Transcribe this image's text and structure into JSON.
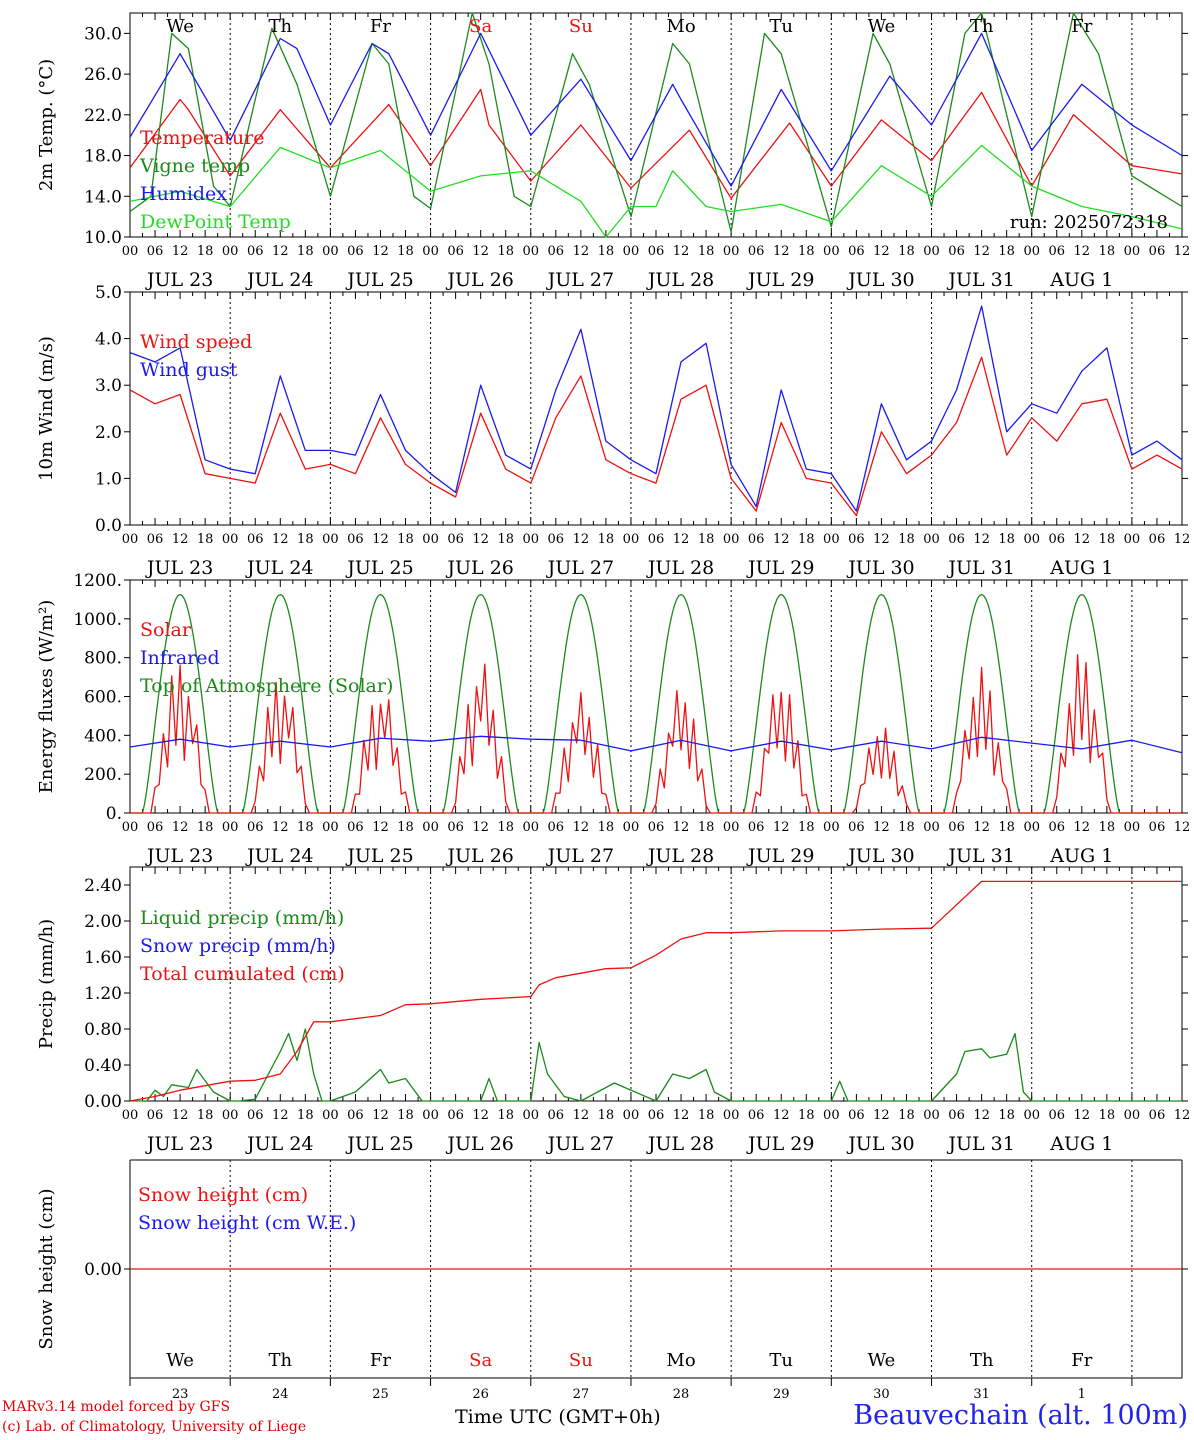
{
  "colors": {
    "temperature": "#ee1111",
    "vigne": "#1a8a1a",
    "humidex": "#1a1aee",
    "dewpoint": "#22dd22",
    "axis": "#000000",
    "weekend": "#ee1111"
  },
  "footer": {
    "model": "MARv3.14 model forced by GFS",
    "lab": "(c) Lab. of Climatology, University of Liege",
    "axis_title": "Time UTC (GMT+0h)",
    "station": "Beauvechain (alt. 100m)"
  },
  "chart_data": [
    {
      "type": "line",
      "id": "temperature",
      "ylabel": "2m Temp. (°C)",
      "ylim": [
        10,
        32
      ],
      "yticks": [
        "10.0",
        "14.0",
        "18.0",
        "22.0",
        "26.0",
        "30.0"
      ],
      "ytick_values": [
        10,
        14,
        18,
        22,
        26,
        30
      ],
      "annotation": "run: 2025072318",
      "days": [
        "We",
        "Th",
        "Fr",
        "Sa",
        "Su",
        "Mo",
        "Tu",
        "We",
        "Th",
        "Fr"
      ],
      "date_labels": [
        "JUL 23",
        "JUL 24",
        "JUL 25",
        "JUL 26",
        "JUL 27",
        "JUL 28",
        "JUL 29",
        "JUL 30",
        "JUL 31",
        "AUG  1"
      ],
      "series": [
        {
          "name": "Temperature",
          "color": "#ee1111",
          "x_hours": [
            0,
            12,
            14,
            24,
            36,
            48,
            62,
            72,
            84,
            86,
            96,
            108,
            120,
            134,
            144,
            158,
            168,
            180,
            192,
            204,
            216,
            226,
            240,
            252
          ],
          "values": [
            16.8,
            23.5,
            22.5,
            16.0,
            22.5,
            16.8,
            23.0,
            17.0,
            24.5,
            21.0,
            15.5,
            21.0,
            14.8,
            20.5,
            13.8,
            21.2,
            15.0,
            21.5,
            17.5,
            24.2,
            15.0,
            22.0,
            17.0,
            16.2
          ]
        },
        {
          "name": "Vigne temp",
          "color": "#1a8a1a",
          "x_hours": [
            0,
            5,
            10,
            14,
            20,
            24,
            34,
            40,
            48,
            58,
            62,
            68,
            72,
            82,
            86,
            92,
            96,
            106,
            110,
            120,
            130,
            134,
            144,
            152,
            156,
            168,
            178,
            182,
            192,
            200,
            204,
            216,
            226,
            232,
            240,
            252
          ],
          "values": [
            12.5,
            14.0,
            30.0,
            28.5,
            15.0,
            13.0,
            30.5,
            25.0,
            14.0,
            29.0,
            27.0,
            14.0,
            12.8,
            32.0,
            27.0,
            14.0,
            13.0,
            28.0,
            25.0,
            12.0,
            29.0,
            27.0,
            10.5,
            30.0,
            28.0,
            11.0,
            30.0,
            27.0,
            13.0,
            30.0,
            32.0,
            12.0,
            32.0,
            28.0,
            16.0,
            13.0
          ]
        },
        {
          "name": "Humidex",
          "color": "#1a1aee",
          "x_hours": [
            0,
            12,
            24,
            36,
            40,
            48,
            58,
            62,
            72,
            84,
            96,
            108,
            120,
            130,
            132,
            144,
            156,
            168,
            182,
            192,
            204,
            216,
            228,
            240,
            252
          ],
          "values": [
            19.8,
            28.0,
            19.5,
            29.5,
            28.5,
            21.0,
            29.0,
            28.0,
            20.0,
            30.0,
            20.0,
            25.5,
            17.5,
            25.0,
            23.5,
            15.0,
            24.5,
            16.5,
            25.8,
            21.0,
            30.0,
            18.5,
            25.0,
            21.0,
            18.0
          ]
        },
        {
          "name": "DewPoint Temp",
          "color": "#22dd22",
          "x_hours": [
            0,
            12,
            24,
            36,
            48,
            60,
            72,
            84,
            96,
            108,
            114,
            120,
            126,
            130,
            138,
            144,
            156,
            168,
            180,
            192,
            204,
            216,
            228,
            240,
            252
          ],
          "values": [
            13.5,
            14.5,
            13.0,
            18.8,
            16.8,
            18.5,
            14.5,
            16.0,
            16.5,
            13.5,
            10.0,
            13.0,
            13.0,
            16.5,
            13.0,
            12.5,
            13.2,
            11.5,
            17.0,
            14.0,
            19.0,
            15.0,
            13.0,
            12.0,
            10.8
          ]
        }
      ]
    },
    {
      "type": "line",
      "id": "wind",
      "ylabel": "10m Wind (m/s)",
      "ylim": [
        0,
        5
      ],
      "yticks": [
        "0.0",
        "1.0",
        "2.0",
        "3.0",
        "4.0",
        "5.0"
      ],
      "ytick_values": [
        0,
        1,
        2,
        3,
        4,
        5
      ],
      "date_labels": [
        "JUL 23",
        "JUL 24",
        "JUL 25",
        "JUL 26",
        "JUL 27",
        "JUL 28",
        "JUL 29",
        "JUL 30",
        "JUL 31",
        "AUG  1"
      ],
      "series": [
        {
          "name": "Wind speed",
          "color": "#ee1111",
          "x_hours": [
            0,
            6,
            12,
            18,
            24,
            30,
            36,
            42,
            48,
            54,
            60,
            66,
            72,
            78,
            84,
            90,
            96,
            102,
            108,
            114,
            120,
            126,
            132,
            138,
            144,
            150,
            156,
            162,
            168,
            174,
            180,
            186,
            192,
            198,
            204,
            210,
            216,
            222,
            228,
            234,
            240,
            246,
            252
          ],
          "values": [
            2.9,
            2.6,
            2.8,
            1.1,
            1.0,
            0.9,
            2.4,
            1.2,
            1.3,
            1.1,
            2.3,
            1.3,
            0.9,
            0.6,
            2.4,
            1.2,
            0.9,
            2.3,
            3.2,
            1.4,
            1.1,
            0.9,
            2.7,
            3.0,
            1.0,
            0.3,
            2.2,
            1.0,
            0.9,
            0.2,
            2.0,
            1.1,
            1.5,
            2.2,
            3.6,
            1.5,
            2.3,
            1.8,
            2.6,
            2.7,
            1.2,
            1.5,
            1.2
          ]
        },
        {
          "name": "Wind gust",
          "color": "#1a1aee",
          "x_hours": [
            0,
            6,
            12,
            18,
            24,
            30,
            36,
            42,
            48,
            54,
            60,
            66,
            72,
            78,
            84,
            90,
            96,
            102,
            108,
            114,
            120,
            126,
            132,
            138,
            144,
            150,
            156,
            162,
            168,
            174,
            180,
            186,
            192,
            198,
            204,
            210,
            216,
            222,
            228,
            234,
            240,
            246,
            252
          ],
          "values": [
            3.7,
            3.5,
            3.8,
            1.4,
            1.2,
            1.1,
            3.2,
            1.6,
            1.6,
            1.5,
            2.8,
            1.6,
            1.1,
            0.7,
            3.0,
            1.5,
            1.2,
            2.9,
            4.2,
            1.8,
            1.4,
            1.1,
            3.5,
            3.9,
            1.3,
            0.4,
            2.9,
            1.2,
            1.1,
            0.3,
            2.6,
            1.4,
            1.8,
            2.9,
            4.7,
            2.0,
            2.6,
            2.4,
            3.3,
            3.8,
            1.5,
            1.8,
            1.4
          ]
        }
      ]
    },
    {
      "type": "line",
      "id": "energy",
      "ylabel": "Energy fluxes (W/m²)",
      "ylim": [
        0,
        1200
      ],
      "yticks": [
        "0.",
        "200.",
        "400.",
        "600.",
        "800.",
        "1000.",
        "1200."
      ],
      "ytick_values": [
        0,
        200,
        400,
        600,
        800,
        1000,
        1200
      ],
      "date_labels": [
        "JUL 23",
        "JUL 24",
        "JUL 25",
        "JUL 26",
        "JUL 27",
        "JUL 28",
        "JUL 29",
        "JUL 30",
        "JUL 31",
        "AUG  1"
      ],
      "series": [
        {
          "name": "Solar",
          "color": "#ee1111",
          "solar_peaks": [
            800,
            730,
            660,
            790,
            620,
            650,
            690,
            450,
            750,
            840
          ]
        },
        {
          "name": "Infrared",
          "color": "#1a1aee",
          "x_hours": [
            0,
            12,
            24,
            36,
            48,
            60,
            72,
            84,
            96,
            108,
            120,
            132,
            144,
            156,
            168,
            180,
            192,
            204,
            216,
            228,
            240,
            252
          ],
          "values": [
            340,
            380,
            340,
            370,
            340,
            385,
            370,
            395,
            380,
            375,
            320,
            375,
            320,
            370,
            325,
            370,
            330,
            390,
            360,
            330,
            375,
            310
          ]
        },
        {
          "name": "Top of Atmosphere (Solar)",
          "color": "#1a8a1a",
          "peak": 1125
        }
      ]
    },
    {
      "type": "line",
      "id": "precip",
      "ylabel": "Precip (mm/h)",
      "ylim": [
        0,
        2.6
      ],
      "yticks": [
        "0.00",
        "0.40",
        "0.80",
        "1.20",
        "1.60",
        "2.00",
        "2.40"
      ],
      "ytick_values": [
        0,
        0.4,
        0.8,
        1.2,
        1.6,
        2.0,
        2.4
      ],
      "date_labels": [
        "JUL 23",
        "JUL 24",
        "JUL 25",
        "JUL 26",
        "JUL 27",
        "JUL 28",
        "JUL 29",
        "JUL 30",
        "JUL 31",
        "AUG  1"
      ],
      "series": [
        {
          "name": "Liquid precip (mm/h)",
          "color": "#1a8a1a",
          "x_hours": [
            0,
            4,
            6,
            8,
            10,
            14,
            16,
            20,
            24,
            26,
            30,
            36,
            38,
            40,
            42,
            44,
            46,
            48,
            54,
            60,
            62,
            66,
            70,
            84,
            86,
            88,
            96,
            98,
            100,
            104,
            108,
            116,
            126,
            130,
            134,
            138,
            140,
            144,
            168,
            170,
            172,
            192,
            198,
            200,
            204,
            206,
            210,
            212,
            214,
            216,
            252
          ],
          "values": [
            0,
            0,
            0.12,
            0.05,
            0.18,
            0.15,
            0.35,
            0.1,
            0,
            0,
            0.02,
            0.55,
            0.75,
            0.45,
            0.8,
            0.3,
            0,
            0,
            0.1,
            0.35,
            0.2,
            0.25,
            0,
            0,
            0.25,
            0,
            0,
            0.65,
            0.3,
            0.05,
            0,
            0.2,
            0,
            0.3,
            0.25,
            0.35,
            0.1,
            0,
            0,
            0.22,
            0,
            0,
            0.3,
            0.55,
            0.58,
            0.48,
            0.52,
            0.75,
            0.1,
            0,
            0
          ]
        },
        {
          "name": "Snow precip (mm/h)",
          "color": "#1a1aee",
          "values": []
        },
        {
          "name": "Total cumulated (cm)",
          "color": "#ee1111",
          "x_hours": [
            0,
            6,
            12,
            24,
            30,
            36,
            40,
            44,
            48,
            60,
            66,
            72,
            84,
            96,
            98,
            102,
            108,
            114,
            120,
            126,
            132,
            138,
            144,
            156,
            168,
            180,
            192,
            204,
            206,
            252
          ],
          "values": [
            0,
            0.05,
            0.12,
            0.22,
            0.23,
            0.3,
            0.55,
            0.88,
            0.88,
            0.95,
            1.07,
            1.08,
            1.13,
            1.16,
            1.29,
            1.37,
            1.42,
            1.47,
            1.48,
            1.62,
            1.8,
            1.87,
            1.87,
            1.89,
            1.89,
            1.91,
            1.92,
            2.44,
            2.44,
            2.44
          ]
        }
      ]
    },
    {
      "type": "line",
      "id": "snow",
      "ylabel": "Snow height (cm)",
      "ylim": [
        -1,
        1
      ],
      "yticks": [
        "0.00"
      ],
      "ytick_values": [
        0
      ],
      "days": [
        "We",
        "Th",
        "Fr",
        "Sa",
        "Su",
        "Mo",
        "Tu",
        "We",
        "Th",
        "Fr"
      ],
      "date_numbers": [
        "23",
        "24",
        "25",
        "26",
        "27",
        "28",
        "29",
        "30",
        "31",
        "1"
      ],
      "series": [
        {
          "name": "Snow height (cm)",
          "color": "#ee1111",
          "values": [
            0,
            0
          ]
        },
        {
          "name": "Snow height (cm W.E.)",
          "color": "#1a1aee",
          "values": [
            0,
            0
          ]
        }
      ]
    }
  ]
}
